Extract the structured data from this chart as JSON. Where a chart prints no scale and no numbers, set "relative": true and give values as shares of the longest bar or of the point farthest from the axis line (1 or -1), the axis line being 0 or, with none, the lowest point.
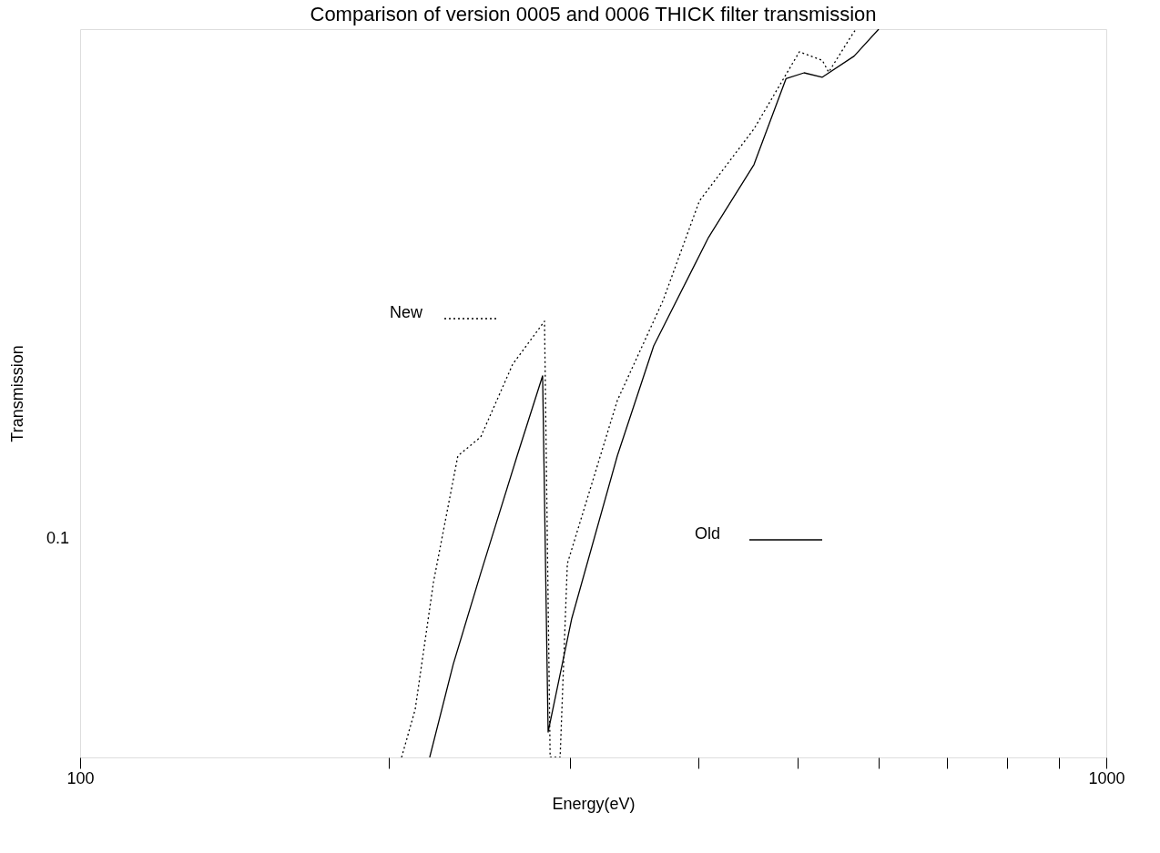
{
  "chart_data": {
    "type": "line",
    "title": "Comparison of version 0005 and 0006 THICK filter transmission",
    "xlabel": "Energy(eV)",
    "ylabel": "Transmission",
    "log": "x",
    "xlim": [
      100,
      1000
    ],
    "relative": true,
    "xticks": [
      {
        "value": 100,
        "label": "100"
      },
      {
        "value": 200,
        "label": null
      },
      {
        "value": 300,
        "label": null
      },
      {
        "value": 400,
        "label": null
      },
      {
        "value": 500,
        "label": null
      },
      {
        "value": 600,
        "label": null
      },
      {
        "value": 700,
        "label": null
      },
      {
        "value": 800,
        "label": null
      },
      {
        "value": 900,
        "label": null
      },
      {
        "value": 1000,
        "label": "1000"
      }
    ],
    "annotations": [
      "0.1"
    ],
    "grid": false,
    "legend": "center",
    "series": [
      {
        "name": "New",
        "color": "#000000",
        "line_style": "dotted",
        "x": [
          205.7,
          212.1,
          221,
          233.4,
          245.7,
          264,
          283.5,
          287.1,
          293.6,
          298.4,
          333.8,
          369.8,
          401.3,
          453.6,
          502.3,
          528.8,
          536.4,
          562.2,
          570.2
        ],
        "values": [
          0,
          0.066,
          0.241,
          0.414,
          0.44,
          0.54,
          0.599,
          0,
          0,
          0.266,
          0.49,
          0.627,
          0.764,
          0.863,
          0.969,
          0.957,
          0.941,
          0.987,
          1
        ]
      },
      {
        "name": "Old",
        "color": "#000000",
        "line_style": "solid",
        "x": [
          219.1,
          231,
          245.7,
          266.6,
          282.3,
          285.8,
          301.4,
          333.8,
          362.2,
          409.6,
          453.6,
          487.4,
          507.6,
          528.8,
          567.9,
          600.1
        ],
        "values": [
          0,
          0.128,
          0.253,
          0.414,
          0.524,
          0.035,
          0.191,
          0.414,
          0.565,
          0.714,
          0.814,
          0.932,
          0.94,
          0.934,
          0.963,
          1
        ]
      }
    ]
  }
}
